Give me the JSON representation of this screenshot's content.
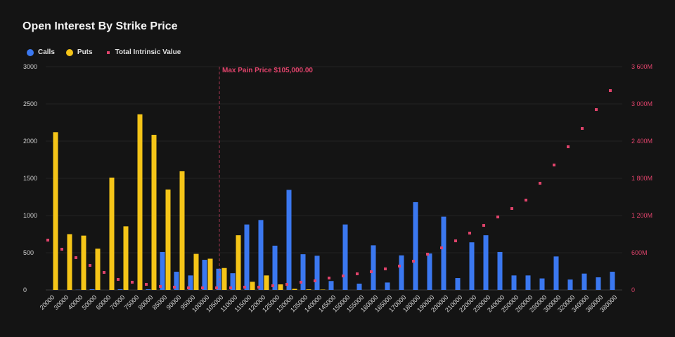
{
  "chart_data": {
    "type": "bar",
    "title": "Open Interest By Strike Price",
    "categories": [
      "20000",
      "30000",
      "40000",
      "50000",
      "60000",
      "70000",
      "75000",
      "80000",
      "85000",
      "90000",
      "95000",
      "100000",
      "105000",
      "110000",
      "115000",
      "120000",
      "125000",
      "130000",
      "135000",
      "140000",
      "145000",
      "150000",
      "155000",
      "160000",
      "165000",
      "170000",
      "180000",
      "190000",
      "200000",
      "210000",
      "220000",
      "230000",
      "240000",
      "250000",
      "260000",
      "280000",
      "300000",
      "320000",
      "340000",
      "360000",
      "380000"
    ],
    "series": [
      {
        "name": "Calls",
        "type": "bar",
        "axis": "left",
        "color": "#3b78f0",
        "values": [
          0,
          0,
          3,
          10,
          0,
          10,
          0,
          10,
          510,
          245,
          195,
          405,
          285,
          225,
          880,
          940,
          595,
          1345,
          480,
          460,
          120,
          880,
          85,
          600,
          100,
          465,
          1180,
          490,
          985,
          160,
          640,
          735,
          510,
          195,
          195,
          155,
          450,
          140,
          220,
          170,
          245
        ]
      },
      {
        "name": "Puts",
        "type": "bar",
        "axis": "left",
        "color": "#f5c518",
        "values": [
          2120,
          750,
          730,
          555,
          1510,
          855,
          2360,
          2085,
          1350,
          1595,
          485,
          420,
          295,
          735,
          110,
          195,
          75,
          15,
          8,
          5,
          0,
          0,
          0,
          0,
          0,
          0,
          0,
          0,
          0,
          0,
          0,
          0,
          0,
          0,
          0,
          0,
          0,
          0,
          0,
          0,
          0
        ]
      },
      {
        "name": "Total Intrinsic Value",
        "type": "scatter",
        "axis": "right",
        "unit": "M",
        "color": "#e0436b",
        "values": [
          804,
          657,
          521,
          396,
          283,
          170,
          125,
          90,
          57,
          45,
          34,
          34,
          34,
          34,
          45,
          45,
          68,
          90,
          125,
          147,
          192,
          226,
          260,
          294,
          340,
          385,
          464,
          577,
          679,
          792,
          917,
          1041,
          1177,
          1313,
          1449,
          1721,
          2015,
          2309,
          2604,
          2909,
          3215
        ]
      }
    ],
    "yleft": {
      "ylim": [
        0,
        3000
      ],
      "ticks": [
        "0",
        "500",
        "1000",
        "1500",
        "2000",
        "2500",
        "3000"
      ]
    },
    "yright": {
      "ylim": [
        0,
        3600
      ],
      "ticks": [
        "0",
        "600M",
        "1 200M",
        "1 800M",
        "2 400M",
        "3 000M",
        "3 600M"
      ],
      "color": "#e0436b"
    },
    "annotation": {
      "label": "Max Pain Price $105,000.00",
      "category": "105000",
      "color": "#e0436b"
    },
    "grid": true,
    "legend": "top-left"
  }
}
